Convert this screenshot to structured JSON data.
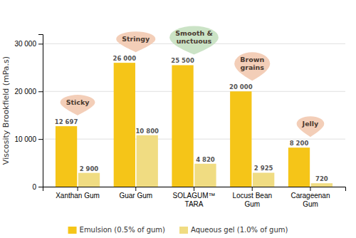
{
  "chart_data": {
    "type": "bar",
    "categories": [
      "Xanthan Gum",
      "Guar Gum",
      "SOLAGUM™\nTARA",
      "Locust Bean\nGum",
      "Carageenan\nGum"
    ],
    "series": [
      {
        "name": "Emulsion (0.5% of gum)",
        "color": "#F5C518",
        "values": [
          12697,
          26000,
          25500,
          20000,
          8200
        ],
        "value_labels": [
          "12 697",
          "26 000",
          "25 500",
          "20 000",
          "8 200"
        ]
      },
      {
        "name": "Aqueous gel (1.0% of gum)",
        "color": "#F0DC82",
        "values": [
          2900,
          10800,
          4820,
          2925,
          720
        ],
        "value_labels": [
          "2 900",
          "10 800",
          "4 820",
          "2 925",
          "720"
        ]
      }
    ],
    "ylabel": "Viscosity Brookfield (mPa.s)",
    "ylim": [
      0,
      32000
    ],
    "yticks": [
      0,
      {
        "value": 10000,
        "label": "10 000"
      },
      {
        "value": 20000,
        "label": "20 000"
      },
      {
        "value": 30000,
        "label": "30 000"
      }
    ],
    "grid": true,
    "data_labels": true,
    "legend": "bottom",
    "annotations": [
      {
        "text": "Sticky",
        "color": "#F2C9B0"
      },
      {
        "text": "Stringy",
        "color": "#F2C9B0"
      },
      {
        "text": "Smooth &\nunctuous",
        "color": "#C5E0C0"
      },
      {
        "text": "Brown\ngrains",
        "color": "#F2C9B0"
      },
      {
        "text": "Jelly",
        "color": "#F2C9B0"
      }
    ]
  }
}
